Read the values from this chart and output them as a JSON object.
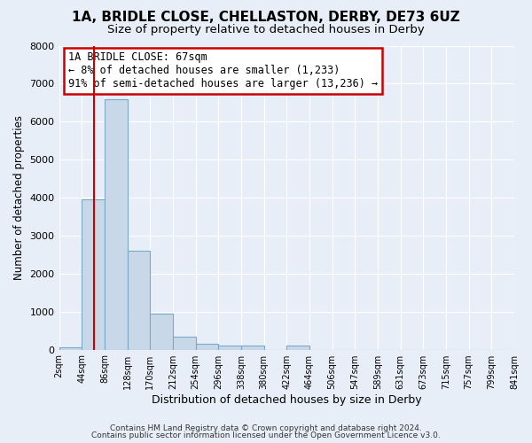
{
  "title1": "1A, BRIDLE CLOSE, CHELLASTON, DERBY, DE73 6UZ",
  "title2": "Size of property relative to detached houses in Derby",
  "xlabel": "Distribution of detached houses by size in Derby",
  "ylabel": "Number of detached properties",
  "footer1": "Contains HM Land Registry data © Crown copyright and database right 2024.",
  "footer2": "Contains public sector information licensed under the Open Government Licence v3.0.",
  "tick_labels": [
    "2sqm",
    "44sqm",
    "86sqm",
    "128sqm",
    "170sqm",
    "212sqm",
    "254sqm",
    "296sqm",
    "338sqm",
    "380sqm",
    "422sqm",
    "464sqm",
    "506sqm",
    "547sqm",
    "589sqm",
    "631sqm",
    "673sqm",
    "715sqm",
    "757sqm",
    "799sqm",
    "841sqm"
  ],
  "bar_heights": [
    50,
    3950,
    6600,
    2600,
    950,
    350,
    150,
    100,
    100,
    0,
    100,
    0,
    0,
    0,
    0,
    0,
    0,
    0,
    0,
    0
  ],
  "bar_color": "#c8d8e8",
  "bar_edge_color": "#7aaac8",
  "vline_bin": 1.55,
  "vline_color": "#cc0000",
  "ylim": [
    0,
    8000
  ],
  "yticks": [
    0,
    1000,
    2000,
    3000,
    4000,
    5000,
    6000,
    7000,
    8000
  ],
  "annotation_title": "1A BRIDLE CLOSE: 67sqm",
  "annotation_line1": "← 8% of detached houses are smaller (1,233)",
  "annotation_line2": "91% of semi-detached houses are larger (13,236) →",
  "annotation_box_color": "#ffffff",
  "annotation_box_edge": "#cc0000",
  "bg_color": "#e8eef8",
  "grid_color": "#ffffff",
  "title1_fontsize": 11,
  "title2_fontsize": 9.5,
  "ann_fontsize": 8.5
}
